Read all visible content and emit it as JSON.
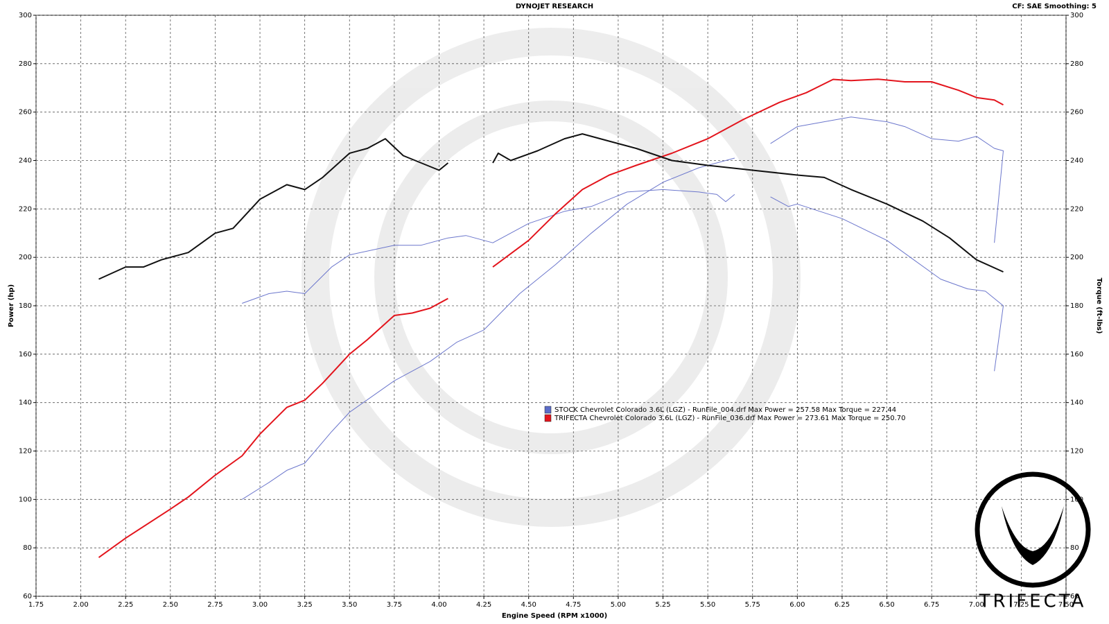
{
  "chart_data": {
    "type": "line",
    "title": "DYNOJET RESEARCH",
    "subtitle": "CF: SAE  Smoothing: 5",
    "xlabel": "Engine Speed (RPM x1000)",
    "ylabel": "Power (hp)",
    "y2label": "Torque (ft-lbs)",
    "logo_text": "TRIFECTA",
    "xlim": [
      1.75,
      7.5
    ],
    "ylim": [
      60,
      300
    ],
    "y2lim": [
      60,
      300
    ],
    "grid": true,
    "xticks": [
      {
        "value": 1.75,
        "label": "1.75"
      },
      {
        "value": 2,
        "label": "2.00"
      },
      {
        "value": 2.25,
        "label": "2.25"
      },
      {
        "value": 2.5,
        "label": "2.50"
      },
      {
        "value": 2.75,
        "label": "2.75"
      },
      {
        "value": 3,
        "label": "3.00"
      },
      {
        "value": 3.25,
        "label": "3.25"
      },
      {
        "value": 3.5,
        "label": "3.50"
      },
      {
        "value": 3.75,
        "label": "3.75"
      },
      {
        "value": 4,
        "label": "4.00"
      },
      {
        "value": 4.25,
        "label": "4.25"
      },
      {
        "value": 4.5,
        "label": "4.50"
      },
      {
        "value": 4.75,
        "label": "4.75"
      },
      {
        "value": 5,
        "label": "5.00"
      },
      {
        "value": 5.25,
        "label": "5.25"
      },
      {
        "value": 5.5,
        "label": "5.50"
      },
      {
        "value": 5.75,
        "label": "5.75"
      },
      {
        "value": 6,
        "label": "6.00"
      },
      {
        "value": 6.25,
        "label": "6.25"
      },
      {
        "value": 6.5,
        "label": "6.50"
      },
      {
        "value": 6.75,
        "label": "6.75"
      },
      {
        "value": 7,
        "label": "7.00"
      },
      {
        "value": 7.25,
        "label": "7.25"
      },
      {
        "value": 7.5,
        "label": "7.50"
      }
    ],
    "yticks": [
      60,
      80,
      100,
      120,
      140,
      160,
      180,
      200,
      220,
      240,
      260,
      280,
      300
    ],
    "y2ticks": [
      60,
      80,
      100,
      120,
      140,
      160,
      180,
      200,
      220,
      240,
      260,
      280,
      300
    ],
    "legend": [
      {
        "name": "STOCK Chevrolet Colorado 3.6L (LGZ) - RunFile_004.drf Max Power = 257.58 Max Torque = 227.44",
        "color": "#5b6cc8"
      },
      {
        "name": "TRIFECTA Chevrolet Colorado 3.6L (LGZ) - RunFile_036.drf Max Power = 273.61 Max Torque = 250.70",
        "color": "#e3141c"
      }
    ],
    "series": [
      {
        "color": "#6b76cc",
        "axis": "y",
        "x": [
          2.9,
          3.05,
          3.15,
          3.25,
          3.4,
          3.5,
          3.75,
          3.95,
          4.1,
          4.25,
          4.45,
          4.65,
          4.85,
          5.05,
          5.25,
          5.45,
          5.65,
          null,
          5.85,
          6.0,
          6.15,
          6.3,
          6.5,
          6.6,
          6.75,
          6.9,
          7.0,
          7.1,
          7.15,
          7.1
        ],
        "values": [
          100,
          107,
          112,
          115,
          128,
          136,
          149,
          157,
          165,
          170,
          185,
          197,
          210,
          222,
          231,
          237,
          241,
          null,
          247,
          254,
          256,
          258,
          256,
          254,
          249,
          248,
          250,
          245,
          244,
          206
        ]
      },
      {
        "color": "#6b76cc",
        "axis": "y2",
        "x": [
          2.9,
          3.05,
          3.15,
          3.25,
          3.4,
          3.5,
          3.75,
          3.9,
          4.05,
          4.15,
          4.3,
          4.5,
          4.7,
          4.85,
          5.05,
          5.25,
          5.45,
          5.55,
          5.6,
          5.65,
          null,
          5.85,
          5.95,
          6.0,
          6.25,
          6.5,
          6.65,
          6.8,
          6.95,
          7.05,
          7.15,
          7.1
        ],
        "values": [
          181,
          185,
          186,
          185,
          196,
          201,
          205,
          205,
          208,
          209,
          206,
          214,
          219,
          221,
          227,
          228,
          227,
          226,
          223,
          226,
          null,
          225,
          221,
          222,
          216,
          207,
          199,
          191,
          187,
          186,
          180,
          153
        ]
      },
      {
        "color": "#e3141c",
        "axis": "y",
        "x": [
          2.1,
          2.25,
          2.5,
          2.6,
          2.75,
          2.9,
          3.0,
          3.15,
          3.25,
          3.35,
          3.5,
          3.6,
          3.75,
          3.85,
          3.95,
          4.05,
          null,
          4.3,
          4.5,
          4.65,
          4.8,
          4.95,
          5.1,
          5.3,
          5.5,
          5.7,
          5.9,
          6.05,
          6.2,
          6.3,
          6.45,
          6.6,
          6.75,
          6.9,
          7.0,
          7.1,
          7.15
        ],
        "values": [
          76,
          84,
          96,
          101,
          110,
          118,
          127,
          138,
          141,
          148,
          160,
          166,
          176,
          177,
          179,
          183,
          null,
          196,
          207,
          218,
          228,
          234,
          238,
          243,
          249,
          257,
          264,
          268,
          273.5,
          273,
          273.6,
          272.5,
          272.5,
          269,
          266,
          265,
          263
        ]
      },
      {
        "color": "#111111",
        "axis": "y2",
        "x": [
          2.1,
          2.25,
          2.35,
          2.45,
          2.6,
          2.75,
          2.85,
          3.0,
          3.15,
          3.25,
          3.35,
          3.5,
          3.6,
          3.7,
          3.8,
          3.9,
          4.0,
          4.05,
          null,
          4.3,
          4.33,
          4.4,
          4.55,
          4.7,
          4.8,
          4.95,
          5.1,
          5.3,
          5.5,
          5.75,
          6.0,
          6.15,
          6.3,
          6.5,
          6.7,
          6.85,
          7.0,
          7.15
        ],
        "values": [
          191,
          196,
          196,
          199,
          202,
          210,
          212,
          224,
          230,
          228,
          233,
          243,
          245,
          249,
          242,
          239,
          236,
          239,
          null,
          239,
          243,
          240,
          244,
          249,
          251,
          248,
          245,
          240,
          238,
          236,
          234,
          233,
          228,
          222,
          215,
          208,
          199,
          194
        ]
      }
    ]
  }
}
